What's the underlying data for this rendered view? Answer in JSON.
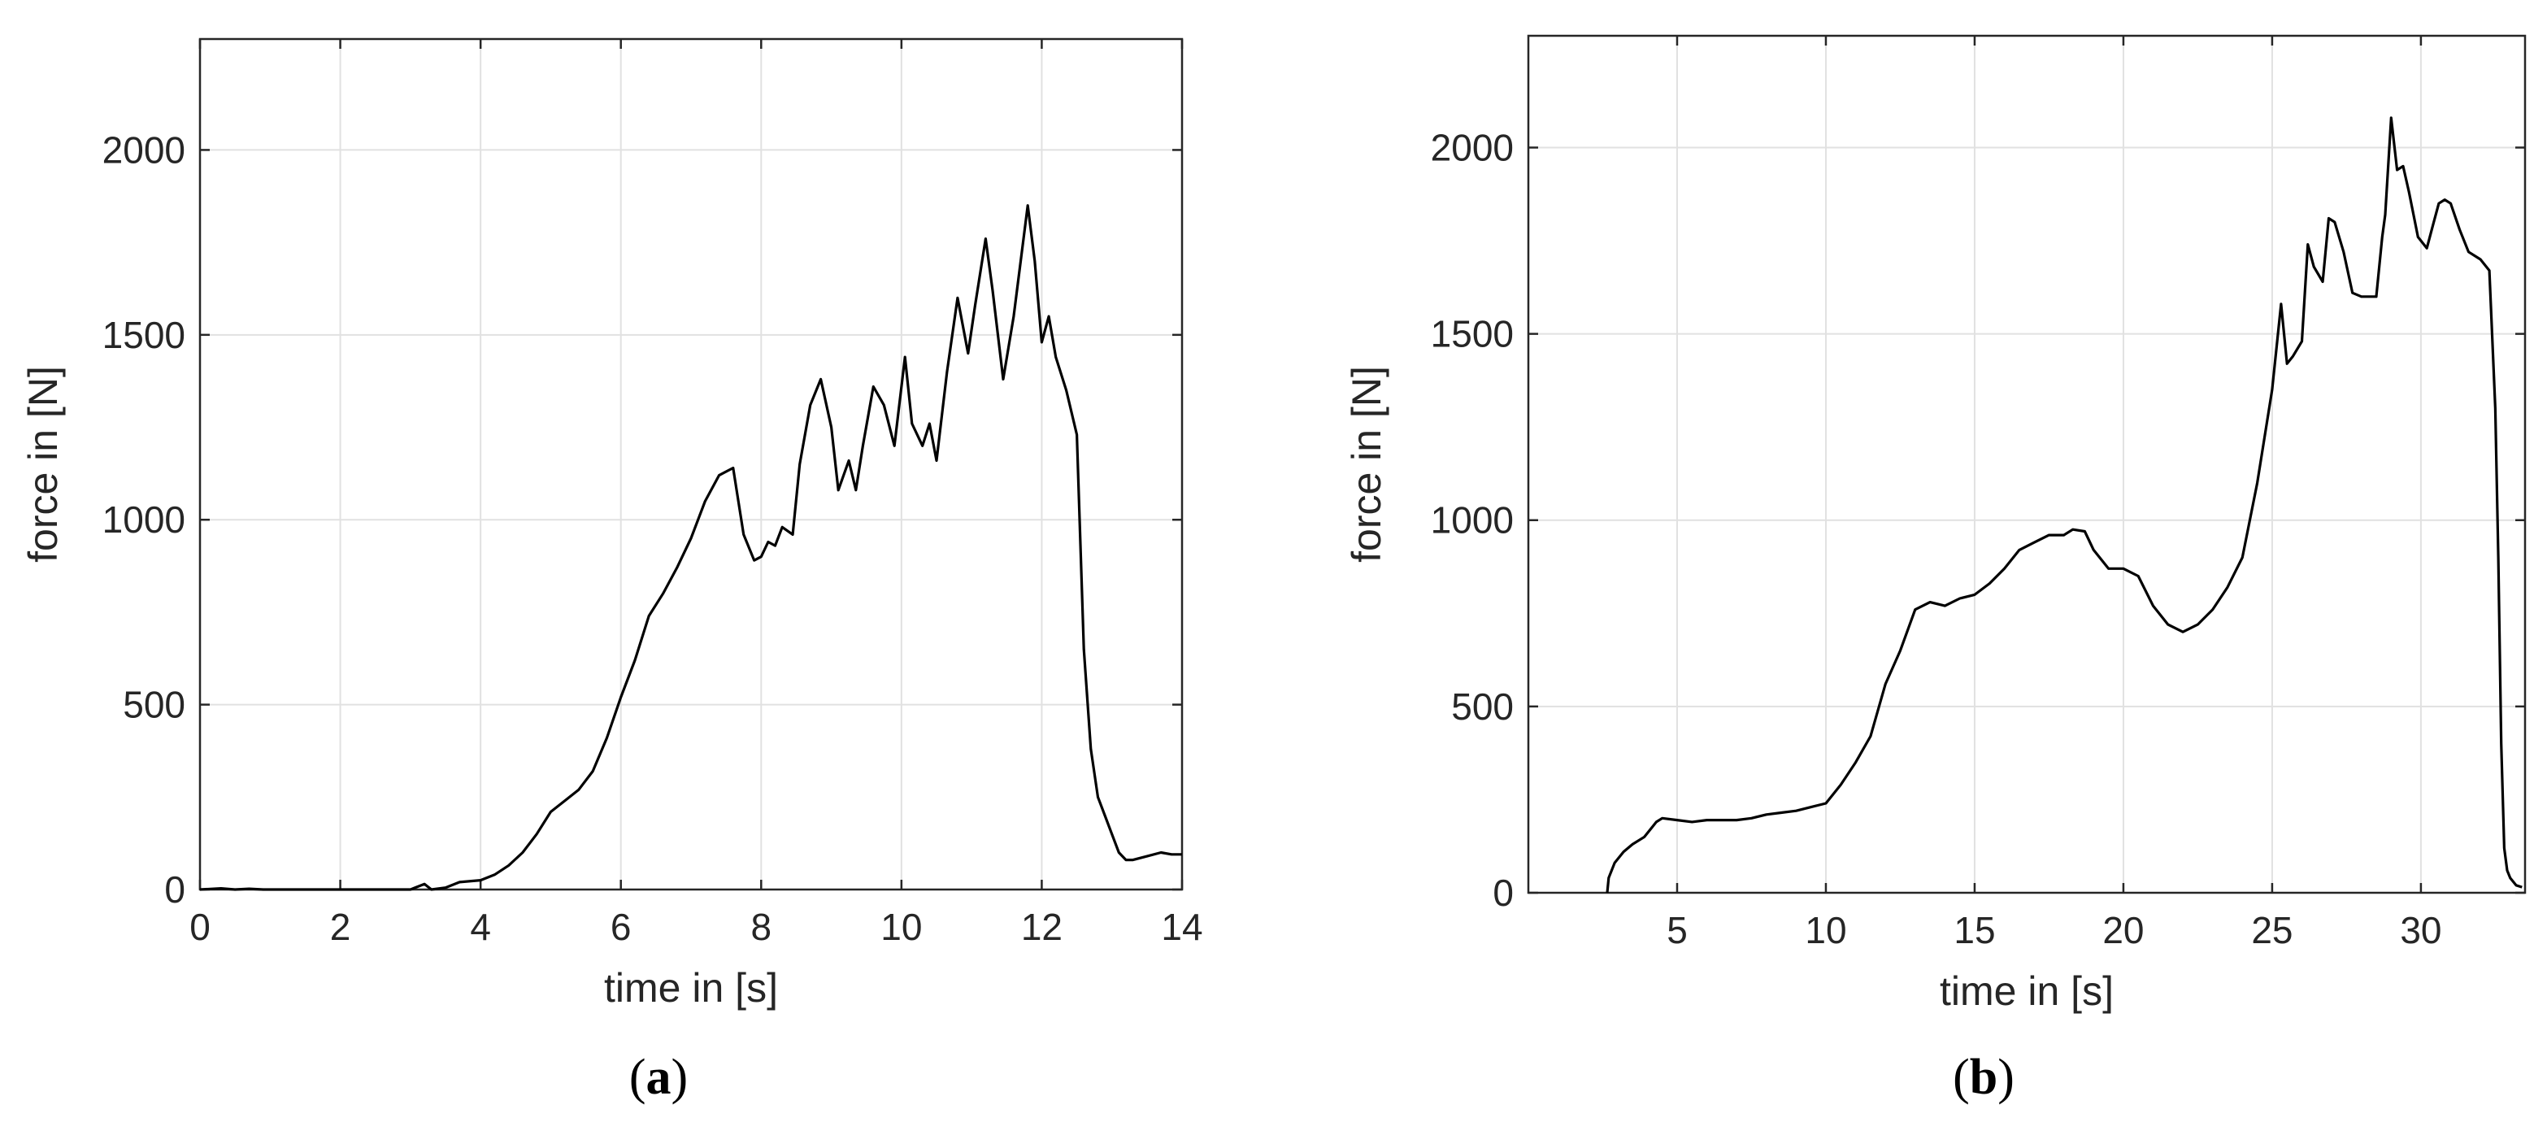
{
  "chart_data": [
    {
      "type": "line",
      "caption": {
        "open": "(",
        "letter": "a",
        "close": ")"
      },
      "xlabel": "time in [s]",
      "ylabel": "force in [N]",
      "xlim": [
        0,
        14
      ],
      "ylim": [
        0,
        2300
      ],
      "xticks": [
        0,
        2,
        4,
        6,
        8,
        10,
        12,
        14
      ],
      "yticks": [
        0,
        500,
        1000,
        1500,
        2000
      ],
      "grid": true,
      "series": [
        {
          "x": [
            0,
            0.3,
            0.5,
            0.7,
            0.9,
            1.2,
            3.0,
            3.2,
            3.3,
            3.5,
            3.7,
            4.0,
            4.2,
            4.4,
            4.6,
            4.8,
            5.0,
            5.2,
            5.4,
            5.6,
            5.8,
            6.0,
            6.2,
            6.4,
            6.6,
            6.8,
            7.0,
            7.2,
            7.4,
            7.6,
            7.75,
            7.9,
            8.0,
            8.1,
            8.2,
            8.3,
            8.45,
            8.55,
            8.7,
            8.85,
            9.0,
            9.1,
            9.25,
            9.35,
            9.45,
            9.6,
            9.75,
            9.9,
            10.05,
            10.15,
            10.3,
            10.4,
            10.5,
            10.65,
            10.8,
            10.95,
            11.05,
            11.2,
            11.3,
            11.45,
            11.6,
            11.8,
            11.9,
            12.0,
            12.1,
            12.2,
            12.35,
            12.5,
            12.6,
            12.7,
            12.8,
            12.9,
            13.0,
            13.1,
            13.2,
            13.3,
            13.5,
            13.7,
            13.85,
            14.0
          ],
          "values": [
            0,
            3,
            0,
            2,
            0,
            0,
            0,
            15,
            0,
            5,
            20,
            25,
            40,
            65,
            100,
            150,
            210,
            240,
            270,
            320,
            410,
            520,
            620,
            740,
            800,
            870,
            950,
            1050,
            1120,
            1140,
            960,
            890,
            900,
            940,
            930,
            980,
            960,
            1150,
            1310,
            1380,
            1250,
            1080,
            1160,
            1080,
            1200,
            1360,
            1310,
            1200,
            1440,
            1260,
            1200,
            1260,
            1160,
            1400,
            1600,
            1450,
            1580,
            1760,
            1620,
            1380,
            1550,
            1850,
            1700,
            1480,
            1550,
            1440,
            1350,
            1230,
            650,
            380,
            250,
            200,
            150,
            100,
            80,
            80,
            90,
            100,
            95,
            95
          ]
        }
      ]
    },
    {
      "type": "line",
      "caption": {
        "open": "(",
        "letter": "b",
        "close": ")"
      },
      "xlabel": "time in [s]",
      "ylabel": "force in [N]",
      "xlim": [
        0,
        33.5
      ],
      "ylim": [
        0,
        2300
      ],
      "xticks": [
        5,
        10,
        15,
        20,
        25,
        30
      ],
      "xgrid": [
        0,
        5,
        10,
        15,
        20,
        25,
        30
      ],
      "yticks": [
        0,
        500,
        1000,
        1500,
        2000
      ],
      "grid": true,
      "series": [
        {
          "x": [
            2.65,
            2.7,
            2.9,
            3.2,
            3.5,
            3.9,
            4.3,
            4.5,
            5.0,
            5.5,
            6.0,
            6.5,
            7.0,
            7.5,
            8.0,
            8.5,
            9.0,
            9.5,
            10.0,
            10.5,
            11.0,
            11.5,
            12.0,
            12.5,
            13.0,
            13.5,
            14.0,
            14.5,
            15.0,
            15.5,
            16.0,
            16.5,
            17.0,
            17.5,
            18.0,
            18.3,
            18.7,
            19.0,
            19.5,
            20.0,
            20.5,
            21.0,
            21.5,
            22.0,
            22.5,
            23.0,
            23.5,
            24.0,
            24.5,
            25.0,
            25.3,
            25.5,
            25.7,
            26.0,
            26.2,
            26.4,
            26.7,
            26.9,
            27.1,
            27.4,
            27.7,
            28.0,
            28.5,
            28.7,
            28.8,
            29.0,
            29.2,
            29.4,
            29.6,
            29.9,
            30.2,
            30.4,
            30.6,
            30.8,
            31.0,
            31.3,
            31.6,
            32.0,
            32.3,
            32.5,
            32.6,
            32.7,
            32.8,
            32.9,
            33.0,
            33.2,
            33.4
          ],
          "values": [
            0,
            40,
            80,
            110,
            130,
            150,
            190,
            200,
            195,
            190,
            195,
            195,
            195,
            200,
            210,
            215,
            220,
            230,
            240,
            290,
            350,
            420,
            560,
            650,
            760,
            780,
            770,
            790,
            800,
            830,
            870,
            920,
            940,
            960,
            960,
            975,
            970,
            920,
            870,
            870,
            850,
            770,
            720,
            700,
            720,
            760,
            820,
            900,
            1100,
            1350,
            1580,
            1420,
            1440,
            1480,
            1740,
            1680,
            1640,
            1810,
            1800,
            1720,
            1610,
            1600,
            1600,
            1760,
            1820,
            2080,
            1940,
            1950,
            1880,
            1760,
            1730,
            1790,
            1850,
            1860,
            1850,
            1780,
            1720,
            1700,
            1670,
            1300,
            900,
            400,
            120,
            60,
            40,
            20,
            15
          ]
        }
      ]
    }
  ]
}
